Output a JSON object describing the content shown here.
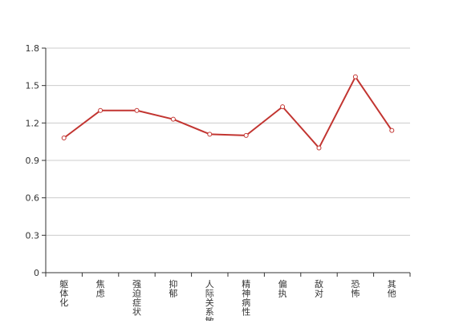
{
  "chart_data": {
    "type": "line",
    "categories": [
      "躯体化",
      "焦虑",
      "强迫症状",
      "抑郁",
      "人际关系敏感",
      "精神病性",
      "偏执",
      "敌对",
      "恐怖",
      "其他"
    ],
    "series": [
      {
        "values": [
          1.08,
          1.3,
          1.3,
          1.23,
          1.11,
          1.1,
          1.33,
          1.0,
          1.57,
          1.14
        ]
      }
    ],
    "y_ticks": [
      "0",
      "0.3",
      "0.6",
      "0.9",
      "1.2",
      "1.5",
      "1.8"
    ],
    "ylim": [
      0,
      1.8
    ],
    "grid": true,
    "legend": "none",
    "colors": {
      "line": "#c23531",
      "grid": "#cccccc",
      "axis": "#333333"
    }
  }
}
